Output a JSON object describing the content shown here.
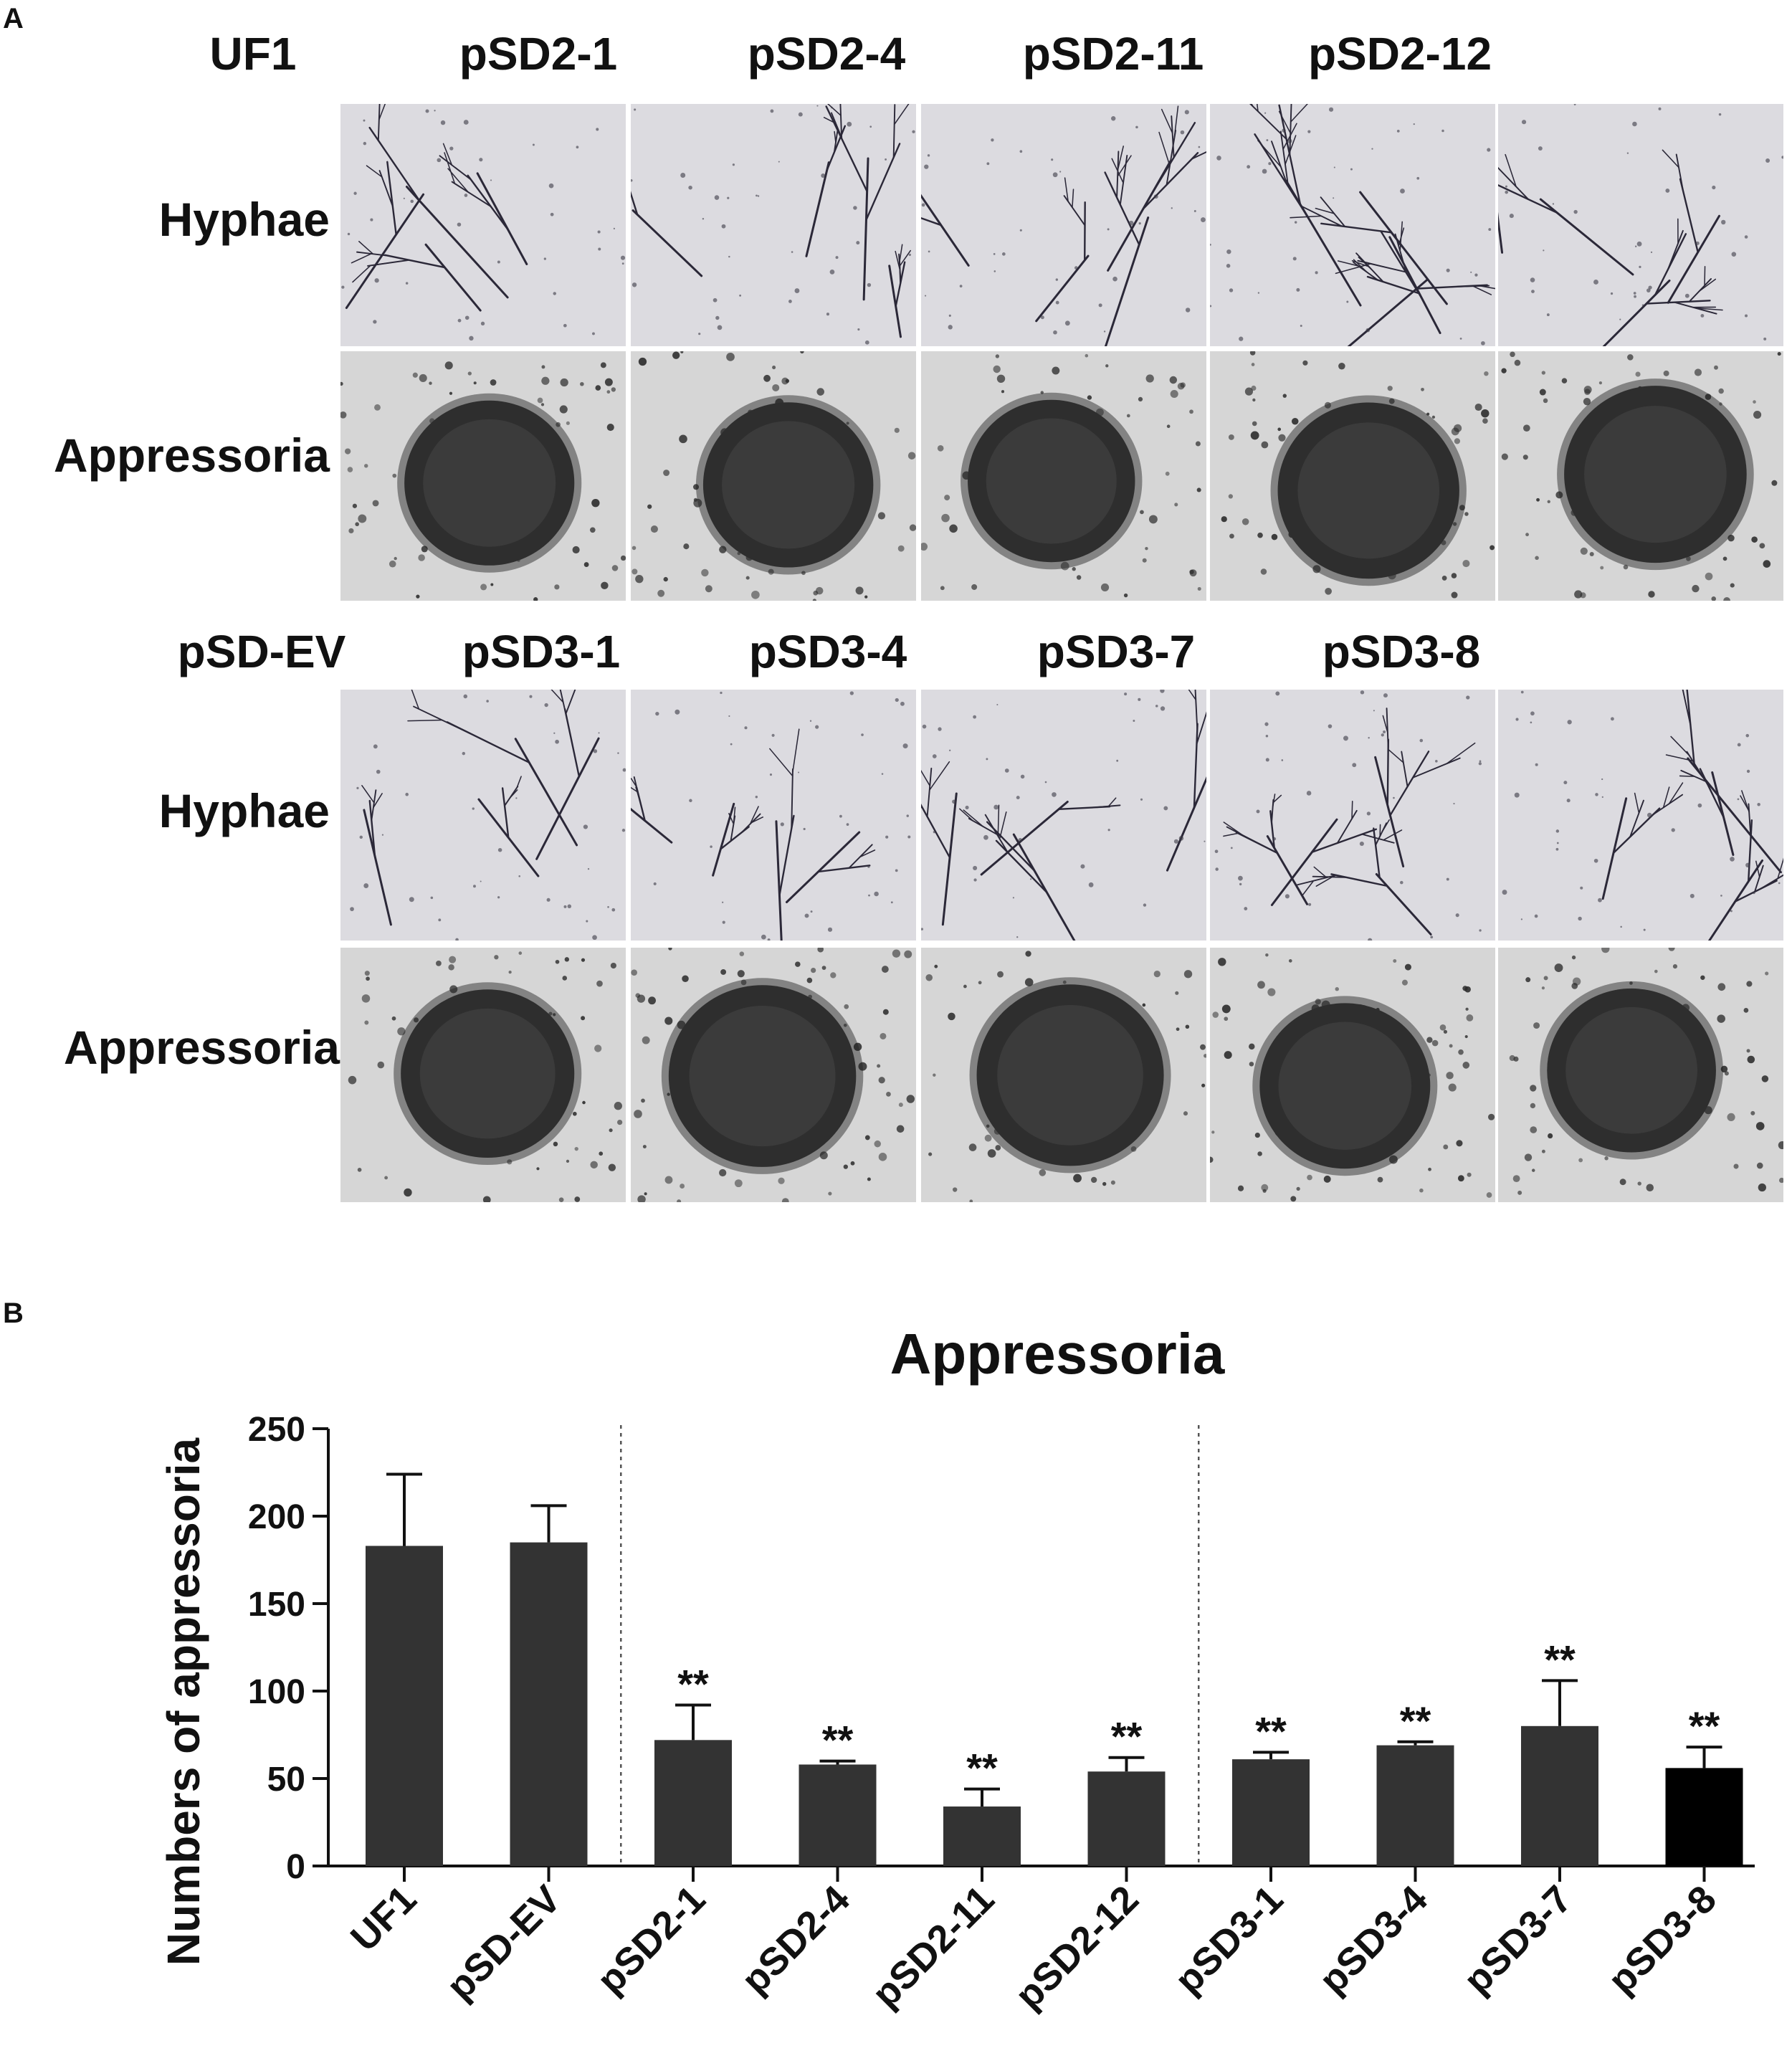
{
  "panel_a": {
    "letter": "A",
    "row_labels": [
      "Hyphae",
      "Appressoria",
      "Hyphae",
      "Appressoria"
    ],
    "top_strains": [
      "UF1",
      "pSD2-1",
      "pSD2-4",
      "pSD2-11",
      "pSD2-12"
    ],
    "bottom_strains": [
      "pSD-EV",
      "pSD3-1",
      "pSD3-4",
      "pSD3-7",
      "pSD3-8"
    ]
  },
  "panel_b": {
    "letter": "B"
  },
  "chart_data": {
    "type": "bar",
    "title": "Appressoria",
    "xlabel": "",
    "ylabel": "Numbers of appressoria",
    "ylim": [
      0,
      250
    ],
    "yticks": [
      0,
      50,
      100,
      150,
      200,
      250
    ],
    "categories": [
      "UF1",
      "pSD-EV",
      "pSD2-1",
      "pSD2-4",
      "pSD2-11",
      "pSD2-12",
      "pSD3-1",
      "pSD3-4",
      "pSD3-7",
      "pSD3-8"
    ],
    "values": [
      183,
      185,
      72,
      58,
      34,
      54,
      61,
      69,
      80,
      56
    ],
    "errors": [
      41,
      21,
      20,
      2,
      10,
      8,
      4,
      2,
      26,
      12
    ],
    "annotations": [
      "",
      "",
      "**",
      "**",
      "**",
      "**",
      "**",
      "**",
      "**",
      "**"
    ],
    "group_separators_after_index": [
      1,
      5
    ],
    "bar_colors": [
      "#333333",
      "#333333",
      "#333333",
      "#333333",
      "#333333",
      "#333333",
      "#333333",
      "#333333",
      "#333333",
      "#000000"
    ],
    "grid": false
  }
}
